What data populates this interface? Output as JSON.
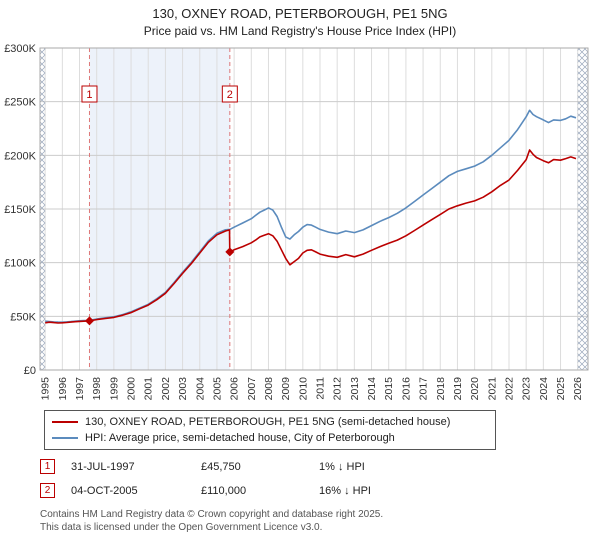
{
  "header": {
    "title": "130, OXNEY ROAD, PETERBOROUGH, PE1 5NG",
    "subtitle": "Price paid vs. HM Land Registry's House Price Index (HPI)"
  },
  "chart_data": {
    "type": "line",
    "title": "130, OXNEY ROAD, PETERBOROUGH, PE1 5NG — Price paid vs. HPI",
    "x_domain": [
      1994.7,
      2026.6
    ],
    "ylim": [
      0,
      300000
    ],
    "x_ticks": [
      1995,
      1996,
      1997,
      1998,
      1999,
      2000,
      2001,
      2002,
      2003,
      2004,
      2005,
      2006,
      2007,
      2008,
      2009,
      2010,
      2011,
      2012,
      2013,
      2014,
      2015,
      2016,
      2017,
      2018,
      2019,
      2020,
      2021,
      2022,
      2023,
      2024,
      2025,
      2026
    ],
    "y_ticks": [
      {
        "value": 0,
        "label": "£0"
      },
      {
        "value": 50000,
        "label": "£50K"
      },
      {
        "value": 100000,
        "label": "£100K"
      },
      {
        "value": 150000,
        "label": "£150K"
      },
      {
        "value": 200000,
        "label": "£200K"
      },
      {
        "value": 250000,
        "label": "£250K"
      },
      {
        "value": 300000,
        "label": "£300K"
      }
    ],
    "band": {
      "from": 1997.58,
      "to": 2005.75
    },
    "band_color": "#edf2fa",
    "hatch_bands": [
      {
        "from": 1994.7,
        "to": 1995.0
      },
      {
        "from": 2026.0,
        "to": 2026.6
      }
    ],
    "hatch_color": "#9aa7bb",
    "marker_line_color": "#dd7777",
    "grid_color_h": "#cccccc",
    "grid_color_v": "#dddddd",
    "series": [
      {
        "name": "130, OXNEY ROAD, PETERBOROUGH, PE1 5NG (semi-detached house)",
        "color": "#bb0000",
        "points": [
          [
            1995.0,
            44000
          ],
          [
            1995.25,
            44500
          ],
          [
            1995.5,
            44200
          ],
          [
            1995.75,
            43800
          ],
          [
            1996.0,
            44000
          ],
          [
            1996.25,
            44300
          ],
          [
            1996.5,
            44600
          ],
          [
            1996.75,
            45000
          ],
          [
            1997.0,
            45300
          ],
          [
            1997.25,
            45500
          ],
          [
            1997.58,
            45750
          ],
          [
            1998.0,
            47000
          ],
          [
            1998.5,
            48000
          ],
          [
            1999.0,
            49000
          ],
          [
            1999.5,
            51000
          ],
          [
            2000.0,
            53500
          ],
          [
            2000.5,
            57000
          ],
          [
            2001.0,
            60500
          ],
          [
            2001.5,
            65500
          ],
          [
            2002.0,
            71500
          ],
          [
            2002.5,
            80500
          ],
          [
            2003.0,
            90000
          ],
          [
            2003.5,
            99000
          ],
          [
            2004.0,
            109000
          ],
          [
            2004.5,
            119000
          ],
          [
            2005.0,
            126000
          ],
          [
            2005.5,
            129500
          ],
          [
            2005.73,
            130500
          ],
          [
            2005.75,
            110000
          ],
          [
            2006.0,
            112000
          ],
          [
            2006.5,
            115000
          ],
          [
            2007.0,
            118500
          ],
          [
            2007.25,
            121000
          ],
          [
            2007.5,
            124000
          ],
          [
            2007.75,
            125500
          ],
          [
            2008.0,
            127000
          ],
          [
            2008.25,
            125000
          ],
          [
            2008.5,
            120000
          ],
          [
            2008.75,
            112000
          ],
          [
            2009.0,
            104000
          ],
          [
            2009.25,
            98000
          ],
          [
            2009.5,
            101000
          ],
          [
            2009.75,
            104000
          ],
          [
            2010.0,
            109000
          ],
          [
            2010.25,
            111500
          ],
          [
            2010.5,
            112000
          ],
          [
            2010.75,
            110000
          ],
          [
            2011.0,
            108000
          ],
          [
            2011.5,
            106000
          ],
          [
            2012.0,
            105000
          ],
          [
            2012.5,
            107500
          ],
          [
            2013.0,
            105500
          ],
          [
            2013.5,
            108000
          ],
          [
            2014.0,
            111500
          ],
          [
            2014.5,
            115000
          ],
          [
            2015.0,
            118000
          ],
          [
            2015.5,
            121000
          ],
          [
            2016.0,
            125000
          ],
          [
            2016.5,
            130000
          ],
          [
            2017.0,
            135000
          ],
          [
            2017.5,
            140000
          ],
          [
            2018.0,
            145000
          ],
          [
            2018.5,
            150000
          ],
          [
            2019.0,
            153000
          ],
          [
            2019.5,
            155500
          ],
          [
            2020.0,
            157500
          ],
          [
            2020.5,
            161000
          ],
          [
            2021.0,
            166000
          ],
          [
            2021.5,
            172000
          ],
          [
            2022.0,
            177000
          ],
          [
            2022.5,
            186000
          ],
          [
            2023.0,
            196000
          ],
          [
            2023.2,
            205000
          ],
          [
            2023.4,
            201000
          ],
          [
            2023.6,
            198000
          ],
          [
            2024.0,
            195000
          ],
          [
            2024.3,
            193000
          ],
          [
            2024.6,
            196000
          ],
          [
            2025.0,
            195500
          ],
          [
            2025.3,
            197000
          ],
          [
            2025.6,
            198500
          ],
          [
            2025.9,
            197000
          ]
        ]
      },
      {
        "name": "HPI: Average price, semi-detached house, City of Peterborough",
        "color": "#5b8bbd",
        "points": [
          [
            1995.0,
            45500
          ],
          [
            1995.25,
            45200
          ],
          [
            1995.5,
            44800
          ],
          [
            1995.75,
            44600
          ],
          [
            1996.0,
            44500
          ],
          [
            1996.25,
            44800
          ],
          [
            1996.5,
            45100
          ],
          [
            1996.75,
            45500
          ],
          [
            1997.0,
            45800
          ],
          [
            1997.25,
            46000
          ],
          [
            1997.58,
            46200
          ],
          [
            1998.0,
            47500
          ],
          [
            1998.5,
            48600
          ],
          [
            1999.0,
            49600
          ],
          [
            1999.5,
            51600
          ],
          [
            2000.0,
            54200
          ],
          [
            2000.5,
            57700
          ],
          [
            2001.0,
            61200
          ],
          [
            2001.5,
            66300
          ],
          [
            2002.0,
            72300
          ],
          [
            2002.5,
            81400
          ],
          [
            2003.0,
            91000
          ],
          [
            2003.5,
            100200
          ],
          [
            2004.0,
            110200
          ],
          [
            2004.5,
            120300
          ],
          [
            2005.0,
            127400
          ],
          [
            2005.5,
            130600
          ],
          [
            2005.75,
            131000
          ],
          [
            2006.0,
            133000
          ],
          [
            2006.5,
            137000
          ],
          [
            2007.0,
            141000
          ],
          [
            2007.25,
            144000
          ],
          [
            2007.5,
            147000
          ],
          [
            2007.75,
            149000
          ],
          [
            2008.0,
            151000
          ],
          [
            2008.25,
            149000
          ],
          [
            2008.5,
            143000
          ],
          [
            2008.75,
            133000
          ],
          [
            2009.0,
            124000
          ],
          [
            2009.25,
            122000
          ],
          [
            2009.5,
            126000
          ],
          [
            2009.75,
            129000
          ],
          [
            2010.0,
            133000
          ],
          [
            2010.25,
            135500
          ],
          [
            2010.5,
            135000
          ],
          [
            2010.75,
            133000
          ],
          [
            2011.0,
            131000
          ],
          [
            2011.5,
            128500
          ],
          [
            2012.0,
            127000
          ],
          [
            2012.5,
            129500
          ],
          [
            2013.0,
            128000
          ],
          [
            2013.5,
            130500
          ],
          [
            2014.0,
            134500
          ],
          [
            2014.5,
            138500
          ],
          [
            2015.0,
            142000
          ],
          [
            2015.5,
            146000
          ],
          [
            2016.0,
            151000
          ],
          [
            2016.5,
            157000
          ],
          [
            2017.0,
            163000
          ],
          [
            2017.5,
            169000
          ],
          [
            2018.0,
            175000
          ],
          [
            2018.5,
            181000
          ],
          [
            2019.0,
            185000
          ],
          [
            2019.5,
            187500
          ],
          [
            2020.0,
            190000
          ],
          [
            2020.5,
            194000
          ],
          [
            2021.0,
            200000
          ],
          [
            2021.5,
            207000
          ],
          [
            2022.0,
            214000
          ],
          [
            2022.5,
            224000
          ],
          [
            2023.0,
            236000
          ],
          [
            2023.2,
            242000
          ],
          [
            2023.4,
            238000
          ],
          [
            2023.6,
            236000
          ],
          [
            2024.0,
            233000
          ],
          [
            2024.3,
            230500
          ],
          [
            2024.6,
            233000
          ],
          [
            2025.0,
            232500
          ],
          [
            2025.3,
            234000
          ],
          [
            2025.6,
            236500
          ],
          [
            2025.9,
            235000
          ]
        ]
      }
    ],
    "markers": [
      {
        "label": "1",
        "x": 1997.58,
        "value": 45750
      },
      {
        "label": "2",
        "x": 2005.75,
        "value": 110000
      }
    ]
  },
  "transactions": [
    {
      "num": "1",
      "date": "31-JUL-1997",
      "price": "£45,750",
      "hpi": "1% ↓ HPI"
    },
    {
      "num": "2",
      "date": "04-OCT-2005",
      "price": "£110,000",
      "hpi": "16% ↓ HPI"
    }
  ],
  "footer": {
    "line1": "Contains HM Land Registry data © Crown copyright and database right 2025.",
    "line2": "This data is licensed under the Open Government Licence v3.0."
  }
}
